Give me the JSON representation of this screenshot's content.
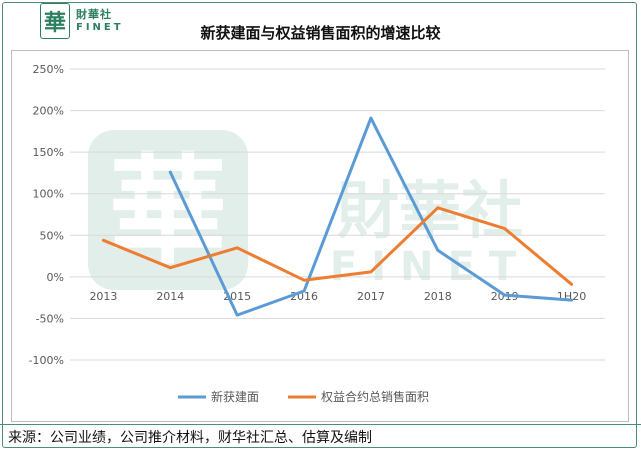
{
  "logo": {
    "mark": "華",
    "name_cn": "財華社",
    "name_en": "FINET"
  },
  "watermark": {
    "mark": "華",
    "name_cn": "財華社",
    "name_en": "FINET"
  },
  "source_text": "来源：公司业绩，公司推介材料，财华社汇总、估算及编制",
  "chart_data": {
    "type": "line",
    "title": "新获建面与权益销售面积的增速比较",
    "categories": [
      "2013",
      "2014",
      "2015",
      "2016",
      "2017",
      "2018",
      "2019",
      "1H20"
    ],
    "y_ticks": [
      "250%",
      "200%",
      "150%",
      "100%",
      "50%",
      "0%",
      "-50%",
      "-100%"
    ],
    "y_tick_values": [
      250,
      200,
      150,
      100,
      50,
      0,
      -50,
      -100
    ],
    "ylim": [
      -100,
      250
    ],
    "grid": true,
    "legend_position": "bottom",
    "series": [
      {
        "name": "新获建面",
        "color": "#5b9bd5",
        "values": [
          null,
          126,
          -46,
          -17,
          191,
          32,
          -22,
          -28
        ]
      },
      {
        "name": "权益合约总销售面积",
        "color": "#ed7d31",
        "values": [
          44,
          11,
          35,
          -4,
          6,
          83,
          58,
          -9
        ]
      }
    ]
  }
}
